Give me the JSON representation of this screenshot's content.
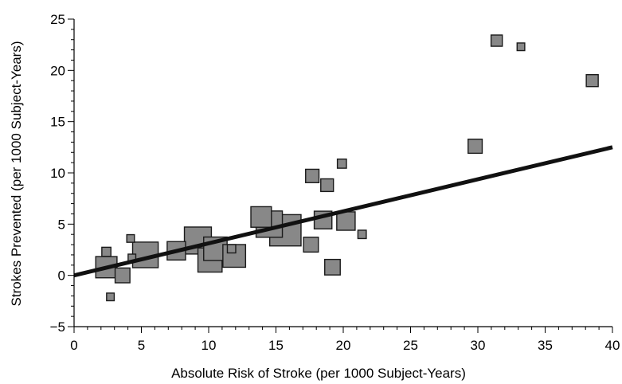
{
  "chart_data": {
    "type": "scatter",
    "title": "",
    "xlabel": "Absolute Risk of Stroke (per 1000 Subject-Years)",
    "ylabel": "Strokes Prevented (per 1000 Subject-Years)",
    "xlim": [
      0,
      40
    ],
    "ylim": [
      -5,
      25
    ],
    "x_ticks": [
      0,
      5,
      10,
      15,
      20,
      25,
      30,
      35,
      40
    ],
    "y_ticks": [
      -5,
      0,
      5,
      10,
      15,
      20,
      25
    ],
    "x_tick_labels": [
      "0",
      "5",
      "10",
      "15",
      "20",
      "25",
      "30",
      "35",
      "40"
    ],
    "y_tick_labels": [
      "−5",
      "0",
      "5",
      "10",
      "15",
      "20",
      "25"
    ],
    "grid": false,
    "legend": "none",
    "marker_shape": "square",
    "marker_fill": "#888888",
    "marker_edge": "#1a1a1a",
    "line_color": "#111111",
    "fit_line": {
      "slope": 0.3125,
      "intercept": 0,
      "x_range": [
        0,
        40
      ]
    },
    "series": [
      {
        "points": [
          {
            "x": 2.4,
            "y": 2.3,
            "weight": 0.6
          },
          {
            "x": 2.4,
            "y": 0.8,
            "weight": 2.3
          },
          {
            "x": 2.7,
            "y": -2.1,
            "weight": 0.4
          },
          {
            "x": 3.6,
            "y": 0.0,
            "weight": 1.4
          },
          {
            "x": 4.2,
            "y": 3.6,
            "weight": 0.4
          },
          {
            "x": 4.3,
            "y": 1.7,
            "weight": 0.4
          },
          {
            "x": 5.3,
            "y": 2.0,
            "weight": 2.9
          },
          {
            "x": 7.6,
            "y": 2.4,
            "weight": 1.9
          },
          {
            "x": 9.2,
            "y": 3.4,
            "weight": 3.1
          },
          {
            "x": 10.1,
            "y": 1.5,
            "weight": 2.7
          },
          {
            "x": 10.5,
            "y": 2.6,
            "weight": 2.6
          },
          {
            "x": 11.7,
            "y": 2.6,
            "weight": 0.5
          },
          {
            "x": 11.9,
            "y": 1.9,
            "weight": 2.5
          },
          {
            "x": 13.9,
            "y": 5.7,
            "weight": 2.2
          },
          {
            "x": 14.5,
            "y": 5.0,
            "weight": 3.0
          },
          {
            "x": 15.7,
            "y": 4.4,
            "weight": 3.7
          },
          {
            "x": 17.6,
            "y": 3.0,
            "weight": 1.4
          },
          {
            "x": 17.7,
            "y": 9.7,
            "weight": 1.2
          },
          {
            "x": 18.5,
            "y": 5.4,
            "weight": 1.8
          },
          {
            "x": 18.8,
            "y": 8.8,
            "weight": 1.1
          },
          {
            "x": 19.2,
            "y": 0.8,
            "weight": 1.5
          },
          {
            "x": 19.9,
            "y": 10.9,
            "weight": 0.6
          },
          {
            "x": 20.2,
            "y": 5.3,
            "weight": 1.9
          },
          {
            "x": 21.4,
            "y": 4.0,
            "weight": 0.5
          },
          {
            "x": 29.8,
            "y": 12.6,
            "weight": 1.3
          },
          {
            "x": 31.4,
            "y": 22.9,
            "weight": 0.9
          },
          {
            "x": 33.2,
            "y": 22.3,
            "weight": 0.4
          },
          {
            "x": 38.5,
            "y": 19.0,
            "weight": 1.0
          }
        ]
      }
    ]
  }
}
